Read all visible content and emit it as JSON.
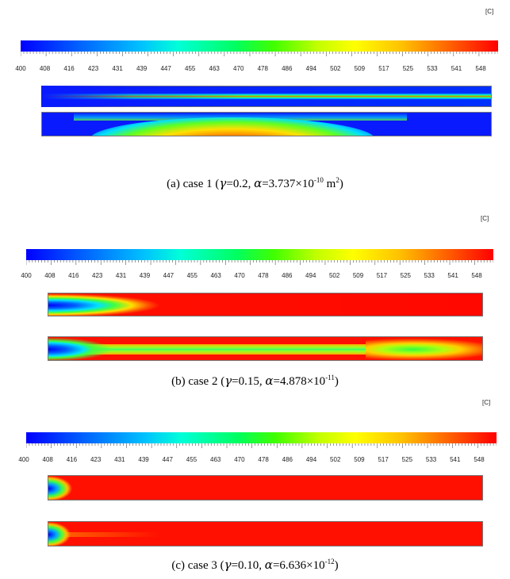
{
  "colorbar": {
    "unit": "[C]",
    "tick_labels": [
      "400",
      "408",
      "416",
      "423",
      "431",
      "439",
      "447",
      "455",
      "463",
      "470",
      "478",
      "486",
      "494",
      "502",
      "509",
      "517",
      "525",
      "533",
      "541",
      "548"
    ]
  },
  "panels": [
    {
      "id": "a",
      "caption_prefix": "(a) case 1 (",
      "gamma_symbol": "γ",
      "gamma_value": "=0.2,  ",
      "alpha_symbol": "α",
      "alpha_value": "=3.737×10",
      "alpha_exp": "-10",
      "alpha_unit": " m",
      "alpha_unit_exp": "2",
      "caption_suffix": ")"
    },
    {
      "id": "b",
      "caption_prefix": "(b) case 2 (",
      "gamma_symbol": "γ",
      "gamma_value": "=0.15,  ",
      "alpha_symbol": "α",
      "alpha_value": "=4.878×10",
      "alpha_exp": "-11",
      "alpha_unit": "",
      "alpha_unit_exp": "",
      "caption_suffix": ")"
    },
    {
      "id": "c",
      "caption_prefix": "(c) case 3 (",
      "gamma_symbol": "γ",
      "gamma_value": "=0.10,  ",
      "alpha_symbol": "α",
      "alpha_value": "=6.636×10",
      "alpha_exp": "-12",
      "alpha_unit": "",
      "alpha_unit_exp": "",
      "caption_suffix": ")"
    }
  ]
}
